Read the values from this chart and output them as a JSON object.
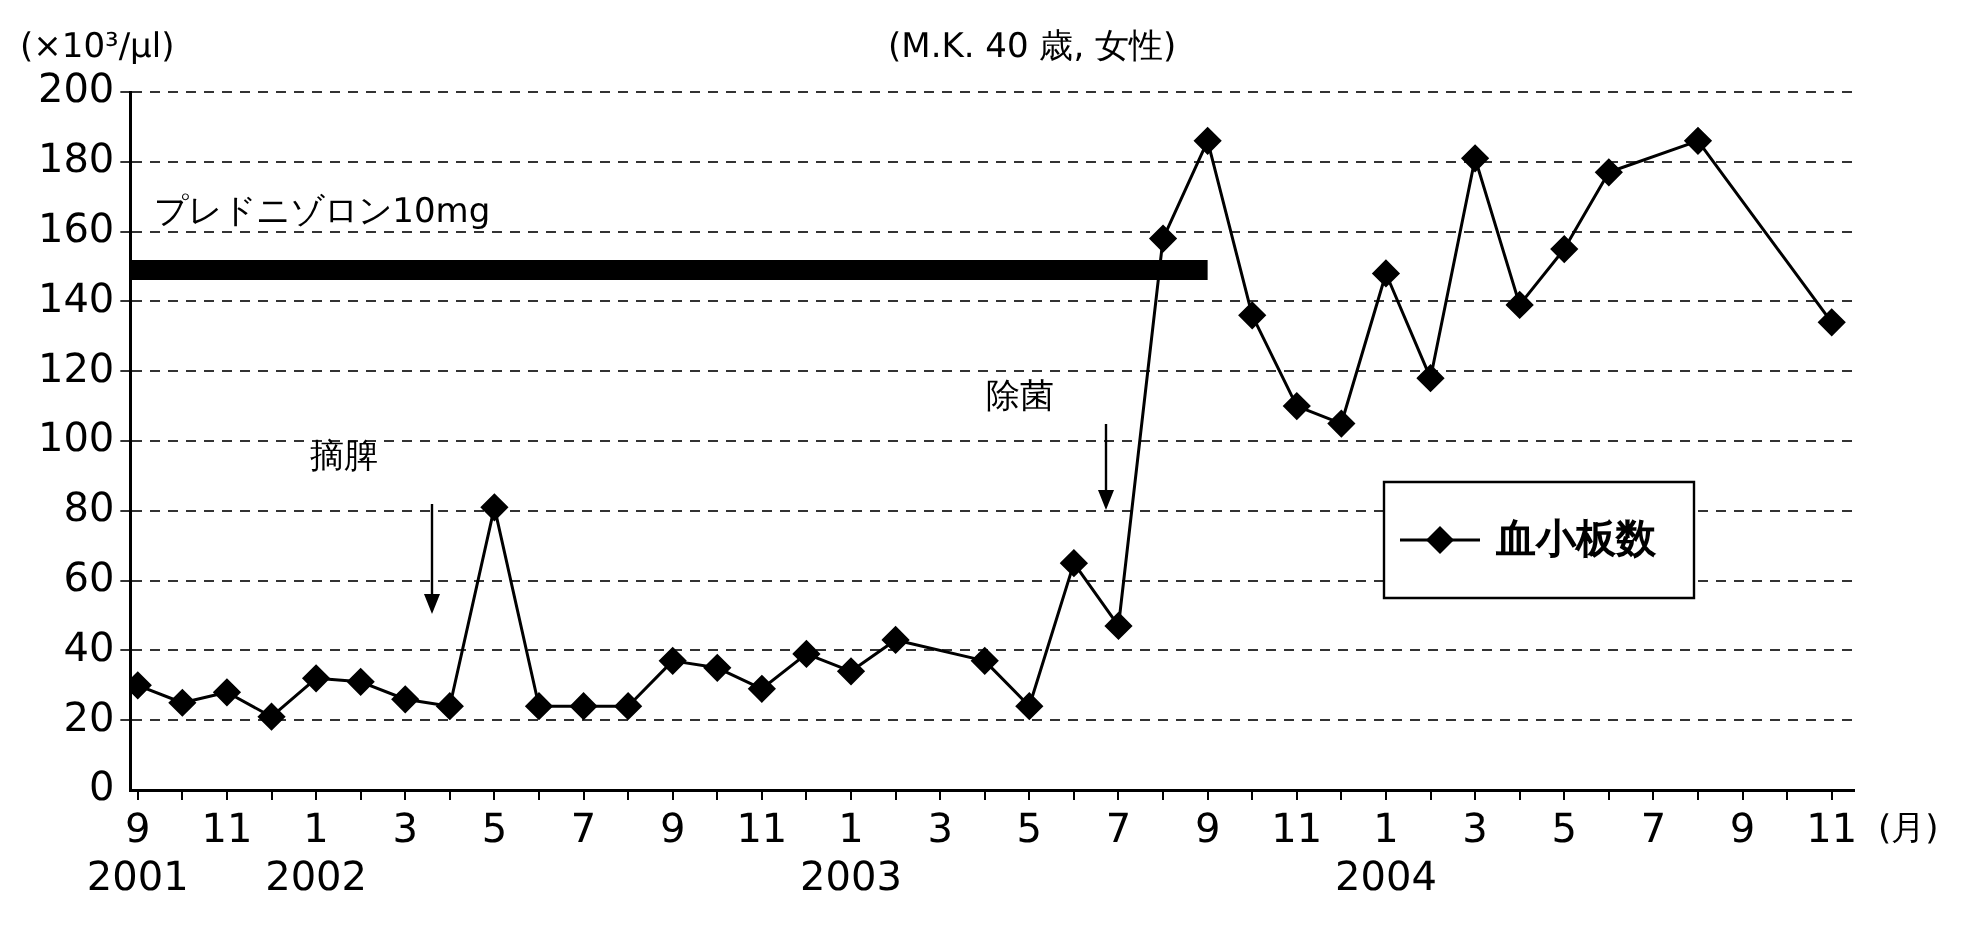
{
  "chart_data": {
    "type": "line",
    "subtitle": "(M.K. 40 歳, 女性)",
    "ylabel": "(×10³/μl)",
    "xlabel": "(月)",
    "xlim": [
      "2001-08-26",
      "2004-11-16"
    ],
    "ylim": [
      0,
      200
    ],
    "yticks": [
      0,
      20,
      40,
      60,
      80,
      100,
      120,
      140,
      160,
      180,
      200
    ],
    "xticks": [
      {
        "value": "2001-09",
        "label": "9\n2001"
      },
      {
        "value": "2001-10",
        "label": null
      },
      {
        "value": "2001-11",
        "label": "11"
      },
      {
        "value": "2001-12",
        "label": null
      },
      {
        "value": "2002-01",
        "label": "1\n2002"
      },
      {
        "value": "2002-02",
        "label": null
      },
      {
        "value": "2002-03",
        "label": "3"
      },
      {
        "value": "2002-04",
        "label": null
      },
      {
        "value": "2002-05",
        "label": "5"
      },
      {
        "value": "2002-06",
        "label": null
      },
      {
        "value": "2002-07",
        "label": "7"
      },
      {
        "value": "2002-08",
        "label": null
      },
      {
        "value": "2002-09",
        "label": "9"
      },
      {
        "value": "2002-10",
        "label": null
      },
      {
        "value": "2002-11",
        "label": "11"
      },
      {
        "value": "2002-12",
        "label": null
      },
      {
        "value": "2003-01",
        "label": "1\n2003"
      },
      {
        "value": "2003-02",
        "label": null
      },
      {
        "value": "2003-03",
        "label": "3"
      },
      {
        "value": "2003-04",
        "label": null
      },
      {
        "value": "2003-05",
        "label": "5"
      },
      {
        "value": "2003-06",
        "label": null
      },
      {
        "value": "2003-07",
        "label": "7"
      },
      {
        "value": "2003-08",
        "label": null
      },
      {
        "value": "2003-09",
        "label": "9"
      },
      {
        "value": "2003-10",
        "label": null
      },
      {
        "value": "2003-11",
        "label": "11"
      },
      {
        "value": "2003-12",
        "label": null
      },
      {
        "value": "2004-01",
        "label": "1\n2004"
      },
      {
        "value": "2004-02",
        "label": null
      },
      {
        "value": "2004-03",
        "label": "3"
      },
      {
        "value": "2004-04",
        "label": null
      },
      {
        "value": "2004-05",
        "label": "5"
      },
      {
        "value": "2004-06",
        "label": null
      },
      {
        "value": "2004-07",
        "label": "7"
      },
      {
        "value": "2004-08",
        "label": null
      },
      {
        "value": "2004-09",
        "label": "9"
      },
      {
        "value": "2004-10",
        "label": null
      },
      {
        "value": "2004-11",
        "label": "11"
      }
    ],
    "grid": "y",
    "legend": "right",
    "series": [
      {
        "name": "血小板数",
        "color": "#000000",
        "marker": "diamond",
        "x": [
          "2001-09",
          "2001-10",
          "2001-11",
          "2001-12",
          "2002-01",
          "2002-02",
          "2002-03",
          "2002-04",
          "2002-05",
          "2002-06",
          "2002-07",
          "2002-08",
          "2002-09",
          "2002-10",
          "2002-11",
          "2002-12",
          "2003-01",
          "2003-02",
          "2003-04",
          "2003-05",
          "2003-06",
          "2003-07",
          "2003-08",
          "2003-09",
          "2003-10",
          "2003-11",
          "2003-12",
          "2004-01",
          "2004-02",
          "2004-03",
          "2004-04",
          "2004-05",
          "2004-06",
          "2004-08",
          "2004-11"
        ],
        "values": [
          30,
          25,
          28,
          21,
          32,
          31,
          26,
          24,
          81,
          24,
          24,
          24,
          37,
          35,
          29,
          39,
          34,
          43,
          37,
          24,
          65,
          47,
          158,
          186,
          136,
          110,
          105,
          148,
          118,
          181,
          139,
          155,
          177,
          186,
          134
        ]
      },
      {
        "name": "プレドニゾロン10mg",
        "color": "#000000",
        "marker": "none",
        "x": [
          "2001-08-26",
          "2003-09"
        ],
        "values": [
          149,
          149
        ]
      }
    ],
    "annotations": [
      "摘脾",
      "除菌"
    ]
  }
}
